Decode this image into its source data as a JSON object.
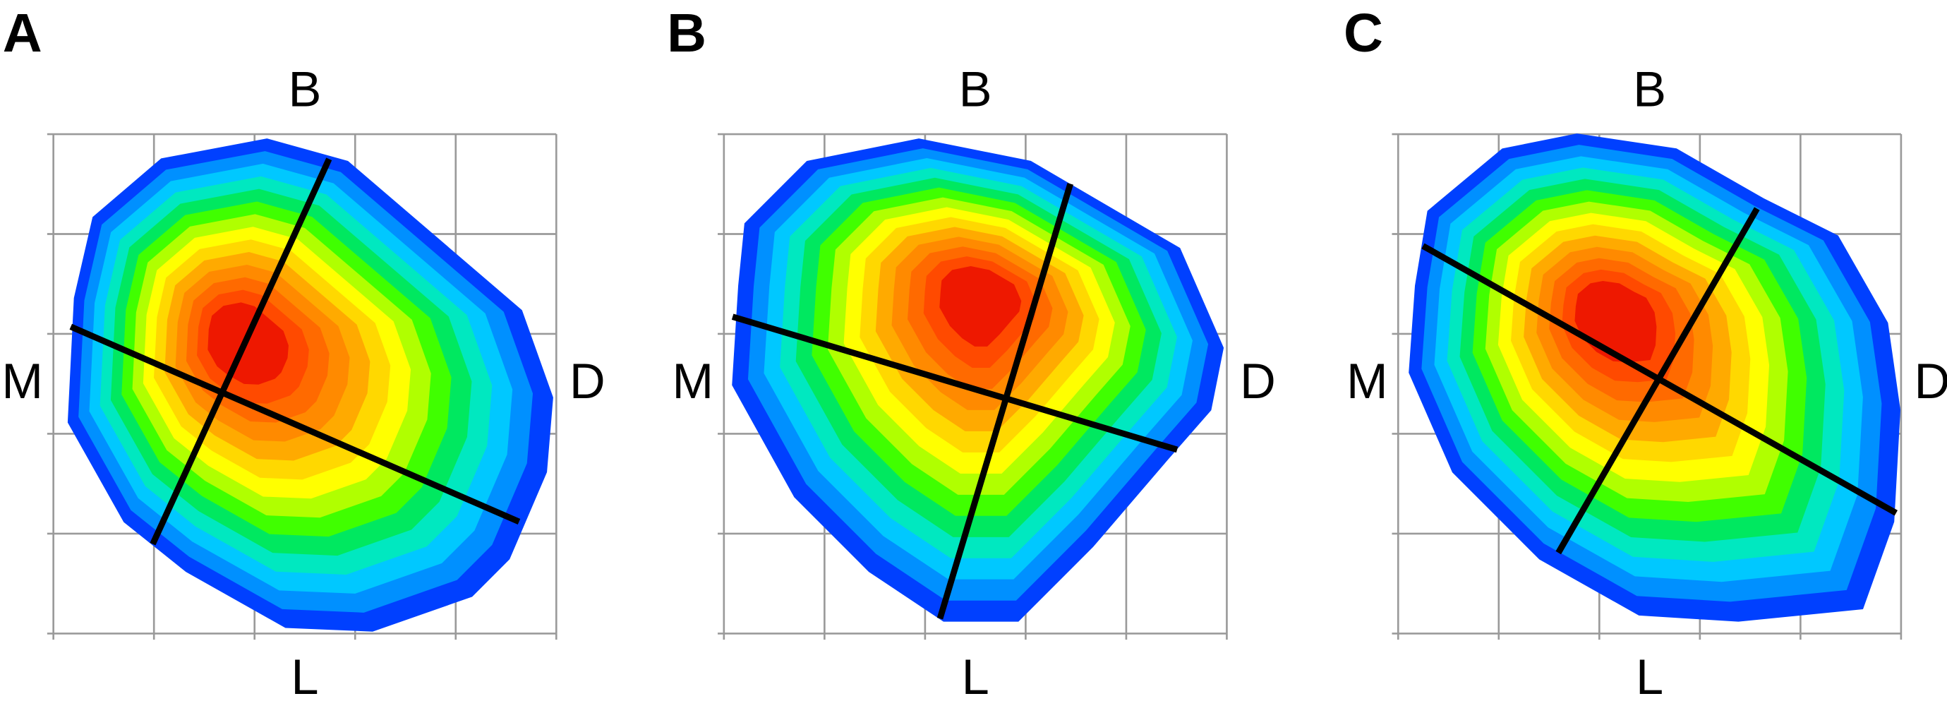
{
  "panels": [
    {
      "label": "A",
      "top": "B",
      "left": "M",
      "right": "D",
      "bottom": "L"
    },
    {
      "label": "B",
      "top": "B",
      "left": "M",
      "right": "D",
      "bottom": "L"
    },
    {
      "label": "C",
      "top": "B",
      "left": "M",
      "right": "D",
      "bottom": "L"
    }
  ]
}
